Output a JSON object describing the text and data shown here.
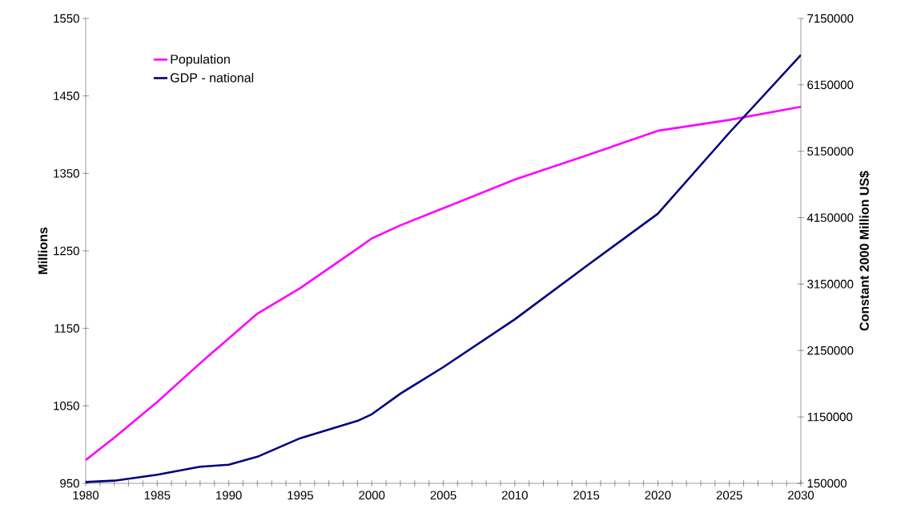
{
  "chart_data": {
    "type": "line",
    "ylabel": "Millions",
    "y2label": "Constant 2000 Million US$",
    "x": [
      1980,
      1982,
      1985,
      1988,
      1990,
      1992,
      1995,
      1999,
      2000,
      2002,
      2005,
      2010,
      2015,
      2020,
      2025,
      2030
    ],
    "series": [
      {
        "name": "Population",
        "color": "#ff00ff",
        "axis": "y",
        "values": [
          980,
          1009,
          1055,
          1105,
          1137,
          1169,
          1202,
          1253,
          1266,
          1283,
          1305,
          1342,
          1373,
          1405,
          1419,
          1436
        ]
      },
      {
        "name": "GDP - national",
        "color": "#000080",
        "axis": "y2",
        "values": [
          170000,
          190000,
          280000,
          400000,
          430000,
          550000,
          830000,
          1090000,
          1190000,
          1500000,
          1900000,
          2620000,
          3420000,
          4210000,
          5430000,
          6600000
        ]
      }
    ],
    "xlim": [
      1980,
      2030
    ],
    "xticks": [
      1980,
      {
        "value": 1981,
        "label": null
      },
      {
        "value": 1982,
        "label": null
      },
      {
        "value": 1983,
        "label": null
      },
      {
        "value": 1984,
        "label": null
      },
      1985,
      {
        "value": 1986,
        "label": null
      },
      {
        "value": 1987,
        "label": null
      },
      {
        "value": 1988,
        "label": null
      },
      {
        "value": 1989,
        "label": null
      },
      1990,
      {
        "value": 1991,
        "label": null
      },
      {
        "value": 1992,
        "label": null
      },
      {
        "value": 1993,
        "label": null
      },
      {
        "value": 1994,
        "label": null
      },
      1995,
      {
        "value": 1996,
        "label": null
      },
      {
        "value": 1997,
        "label": null
      },
      {
        "value": 1998,
        "label": null
      },
      {
        "value": 1999,
        "label": null
      },
      2000,
      {
        "value": 2001,
        "label": null
      },
      {
        "value": 2002,
        "label": null
      },
      {
        "value": 2003,
        "label": null
      },
      {
        "value": 2004,
        "label": null
      },
      2005,
      {
        "value": 2006,
        "label": null
      },
      {
        "value": 2007,
        "label": null
      },
      {
        "value": 2008,
        "label": null
      },
      {
        "value": 2009,
        "label": null
      },
      2010,
      {
        "value": 2011,
        "label": null
      },
      {
        "value": 2012,
        "label": null
      },
      {
        "value": 2013,
        "label": null
      },
      {
        "value": 2014,
        "label": null
      },
      2015,
      {
        "value": 2016,
        "label": null
      },
      {
        "value": 2017,
        "label": null
      },
      {
        "value": 2018,
        "label": null
      },
      {
        "value": 2019,
        "label": null
      },
      2020,
      {
        "value": 2021,
        "label": null
      },
      {
        "value": 2022,
        "label": null
      },
      {
        "value": 2023,
        "label": null
      },
      {
        "value": 2024,
        "label": null
      },
      2025,
      {
        "value": 2026,
        "label": null
      },
      {
        "value": 2027,
        "label": null
      },
      {
        "value": 2028,
        "label": null
      },
      {
        "value": 2029,
        "label": null
      },
      2030
    ],
    "ylim": [
      950,
      1550
    ],
    "yticks": [
      950,
      1050,
      1150,
      1250,
      1350,
      1450,
      1550
    ],
    "y2lim": [
      150000,
      7150000
    ],
    "y2ticks": [
      150000,
      1150000,
      2150000,
      3150000,
      4150000,
      5150000,
      6150000,
      7150000
    ],
    "legend": "top left",
    "grid": false,
    "marker": "none",
    "line_style": "solid"
  }
}
